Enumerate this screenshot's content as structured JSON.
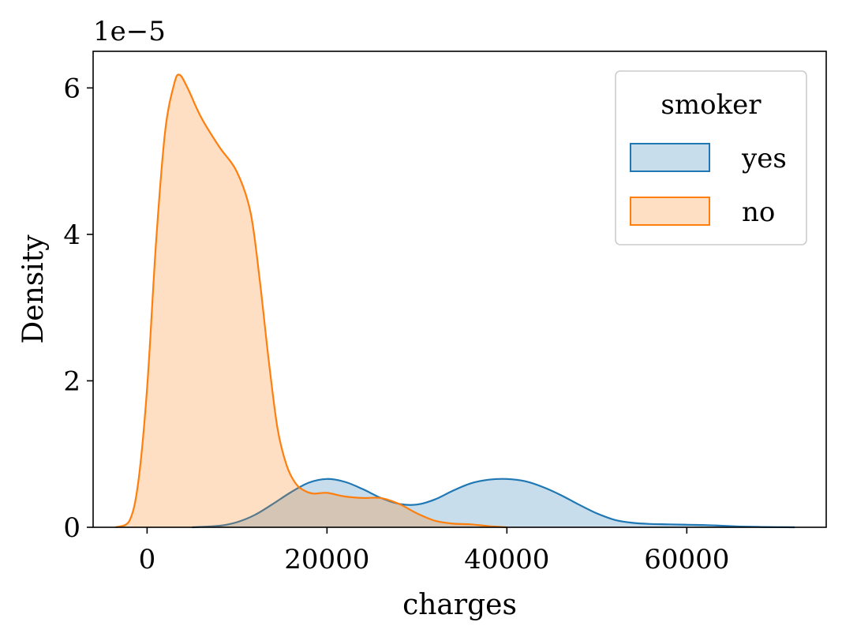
{
  "chart_data": {
    "type": "area",
    "title": "",
    "xlabel": "charges",
    "ylabel": "Density",
    "y_offset_text": "1e−5",
    "xlim": [
      -6000,
      75500
    ],
    "ylim": [
      0,
      6.5
    ],
    "x_ticks": [
      0,
      20000,
      40000,
      60000
    ],
    "x_tick_labels": [
      "0",
      "20000",
      "40000",
      "60000"
    ],
    "y_ticks": [
      0,
      2,
      4,
      6
    ],
    "y_tick_labels": [
      "0",
      "2",
      "4",
      "6"
    ],
    "grid": false,
    "legend": {
      "title": "smoker",
      "placement": "top-right"
    },
    "series": [
      {
        "name": "yes",
        "color": "#1f77b4",
        "fill": "#c6dbee",
        "x": [
          5000,
          8000,
          10000,
          12000,
          14000,
          16000,
          18000,
          20000,
          22000,
          24000,
          26000,
          28000,
          30000,
          32000,
          34000,
          36000,
          38000,
          40000,
          42000,
          44000,
          46000,
          48000,
          50000,
          52000,
          54000,
          56000,
          58000,
          60000,
          62000,
          64000,
          66000,
          68000,
          70000,
          72000
        ],
        "y": [
          0.0,
          0.02,
          0.07,
          0.17,
          0.32,
          0.48,
          0.61,
          0.66,
          0.62,
          0.52,
          0.4,
          0.32,
          0.31,
          0.38,
          0.5,
          0.6,
          0.65,
          0.66,
          0.63,
          0.55,
          0.44,
          0.31,
          0.19,
          0.1,
          0.06,
          0.045,
          0.04,
          0.035,
          0.03,
          0.02,
          0.01,
          0.005,
          0.002,
          0.0
        ]
      },
      {
        "name": "no",
        "color": "#ff7f0e",
        "fill": "#ffdcbd",
        "x": [
          -3500,
          -2000,
          -1000,
          0,
          1000,
          2000,
          3000,
          3600,
          4500,
          6000,
          8000,
          10000,
          11500,
          12500,
          13500,
          14500,
          15500,
          16500,
          17500,
          18500,
          20000,
          22000,
          24000,
          26000,
          28000,
          30000,
          32000,
          34000,
          36000,
          38000,
          40000
        ],
        "y": [
          0.0,
          0.08,
          0.6,
          1.9,
          3.9,
          5.4,
          6.05,
          6.18,
          6.0,
          5.6,
          5.2,
          4.85,
          4.3,
          3.4,
          2.3,
          1.35,
          0.85,
          0.6,
          0.5,
          0.46,
          0.47,
          0.42,
          0.4,
          0.4,
          0.32,
          0.19,
          0.09,
          0.05,
          0.04,
          0.015,
          0.0
        ]
      }
    ]
  }
}
